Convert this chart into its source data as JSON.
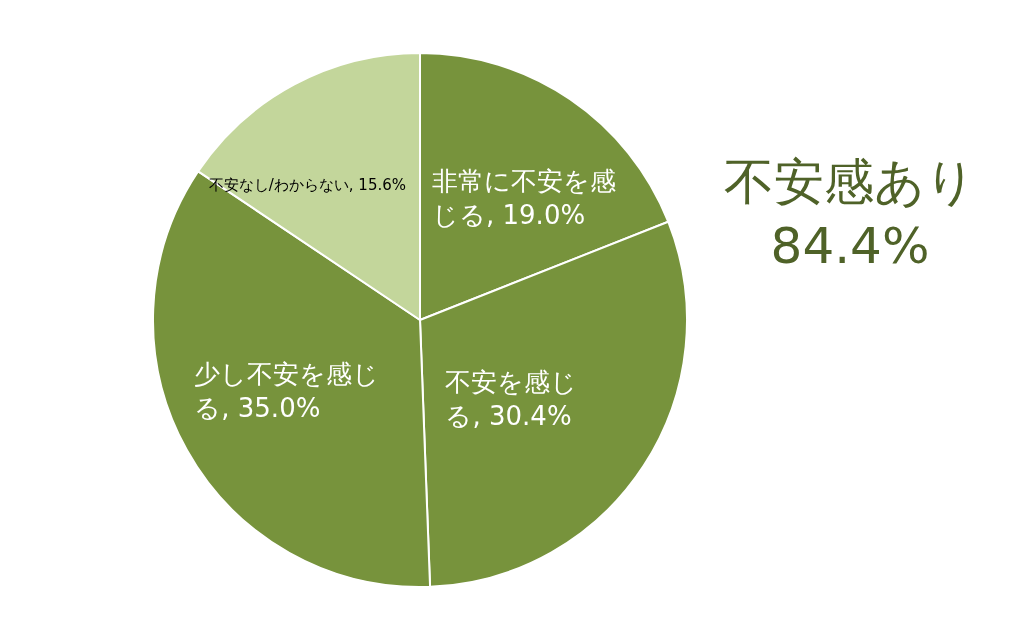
{
  "chart_data": {
    "type": "pie",
    "categories": [
      "非常に不安を感じる",
      "不安を感じる",
      "少し不安を感じる",
      "不安なし/わからない"
    ],
    "values": [
      19.0,
      30.4,
      35.0,
      15.6
    ],
    "value_labels": [
      "19.0%",
      "30.4%",
      "35.0%",
      "15.6%"
    ],
    "colors": [
      "#77933c",
      "#77933c",
      "#77933c",
      "#c3d69b"
    ],
    "legend": false,
    "annotations": [
      "不安感あり\n84.4%"
    ]
  }
}
